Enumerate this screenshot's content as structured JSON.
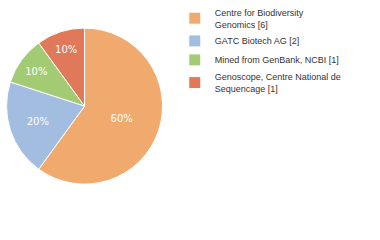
{
  "chart_data": {
    "type": "pie",
    "categories": [
      "Centre for Biodiversity Genomics [6]",
      "GATC Biotech AG [2]",
      "Mined from GenBank, NCBI [1]",
      "Genoscope, Centre National de Sequencage [1]"
    ],
    "values": [
      60,
      20,
      10,
      10
    ],
    "value_labels": [
      "60%",
      "20%",
      "10%",
      "10%"
    ],
    "colors": [
      "#f0aa6e",
      "#a2bde0",
      "#a3cb74",
      "#e0785a"
    ],
    "data_labels": true,
    "legend": "right"
  }
}
